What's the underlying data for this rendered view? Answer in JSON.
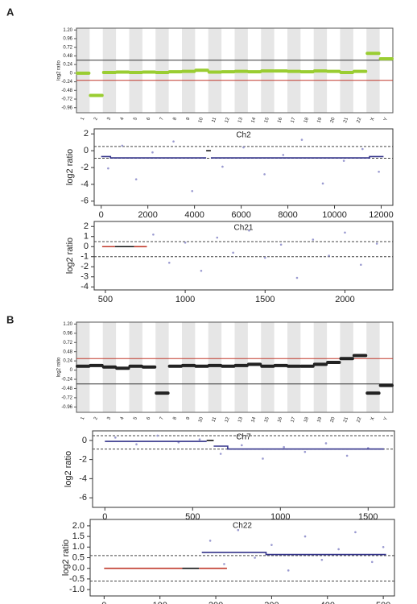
{
  "panel_labels": [
    "A",
    "B"
  ],
  "chart_data": [
    {
      "type": "line",
      "ylabel": "log2 ratio",
      "categories": [
        "1",
        "2",
        "3",
        "4",
        "5",
        "6",
        "7",
        "8",
        "9",
        "10",
        "11",
        "12",
        "13",
        "14",
        "15",
        "16",
        "17",
        "18",
        "19",
        "20",
        "21",
        "22",
        "X",
        "Y"
      ],
      "values": [
        0.0,
        -0.62,
        0.02,
        0.03,
        0.02,
        0.03,
        0.02,
        0.04,
        0.05,
        0.08,
        0.03,
        0.04,
        0.05,
        0.04,
        0.06,
        0.06,
        0.05,
        0.04,
        0.06,
        0.05,
        0.02,
        0.05,
        0.55,
        0.4
      ],
      "color": "#9acd32",
      "ylim": [
        -1.1,
        1.25
      ],
      "yticks": [
        {
          "value": 1.2,
          "label": "1.20"
        },
        0.96,
        0.72,
        0.48,
        0.24,
        0,
        -0.24,
        -0.48,
        -0.72,
        -0.96
      ],
      "reference_lines": [
        0.36,
        -0.2
      ],
      "reference_colors": [
        "#333333",
        "#c0392b"
      ]
    },
    {
      "type": "line",
      "title": "Ch2",
      "ylabel": "log2 ratio",
      "xlim": [
        -300,
        12500
      ],
      "xticks": [
        0,
        2000,
        4000,
        6000,
        8000,
        10000,
        12000
      ],
      "ylim": [
        -6.5,
        2.6
      ],
      "yticks": [
        -6,
        -4,
        -2,
        0,
        2
      ],
      "reference_lines": [
        0.5,
        -0.9
      ],
      "series": [
        {
          "color": "#33338a",
          "x": [
            0,
            400,
            400,
            4500
          ],
          "values": [
            -0.7,
            -0.7,
            -0.85,
            -0.85
          ]
        },
        {
          "color": "#111111",
          "x": [
            4500,
            4700
          ],
          "values": [
            0,
            0
          ]
        },
        {
          "color": "#33338a",
          "x": [
            4700,
            11500,
            11500,
            12100
          ],
          "values": [
            -0.85,
            -0.85,
            -0.7,
            -0.7
          ]
        }
      ],
      "points": {
        "color": "#9a9ad0",
        "x": [
          300,
          900,
          1500,
          2200,
          3100,
          3900,
          5200,
          6100,
          7000,
          7800,
          8600,
          9500,
          10400,
          11200,
          11900
        ],
        "values": [
          -2.1,
          0.6,
          -3.4,
          -0.2,
          1.1,
          -4.8,
          -1.9,
          0.4,
          -2.8,
          -0.5,
          1.3,
          -3.9,
          -1.2,
          0.2,
          -2.5
        ]
      }
    },
    {
      "type": "line",
      "title": "Ch21",
      "ylabel": "log2 ratio",
      "xlim": [
        430,
        2300
      ],
      "xticks": [
        500,
        1000,
        1500,
        2000
      ],
      "ylim": [
        -4.3,
        2.5
      ],
      "yticks": [
        -4,
        -3,
        -2,
        -1,
        0,
        1,
        2
      ],
      "reference_lines": [
        0.5,
        -1
      ],
      "series": [
        {
          "color": "#c0392b",
          "x": [
            480,
            560
          ],
          "values": [
            0,
            0
          ]
        },
        {
          "color": "#111111",
          "x": [
            560,
            680
          ],
          "values": [
            0,
            0
          ]
        },
        {
          "color": "#c0392b",
          "x": [
            680,
            760
          ],
          "values": [
            0,
            0
          ]
        }
      ],
      "points": {
        "color": "#9a9ad0",
        "x": [
          800,
          900,
          1000,
          1100,
          1200,
          1300,
          1400,
          1500,
          1600,
          1700,
          1800,
          1900,
          2000,
          2100,
          2200
        ],
        "values": [
          1.2,
          -1.6,
          0.4,
          -2.4,
          0.9,
          -0.6,
          1.6,
          -1.1,
          0.2,
          -3.1,
          0.7,
          -0.9,
          1.4,
          -1.8,
          0.3
        ]
      }
    },
    {
      "type": "line",
      "ylabel": "log2 ratio",
      "categories": [
        "1",
        "2",
        "3",
        "4",
        "5",
        "6",
        "7",
        "8",
        "9",
        "10",
        "11",
        "12",
        "13",
        "14",
        "15",
        "16",
        "17",
        "18",
        "19",
        "20",
        "21",
        "22",
        "X",
        "Y"
      ],
      "values": [
        0.1,
        0.12,
        0.08,
        0.05,
        0.1,
        0.08,
        -0.6,
        0.1,
        0.12,
        0.1,
        0.12,
        0.1,
        0.12,
        0.15,
        0.1,
        0.12,
        0.1,
        0.1,
        0.15,
        0.2,
        0.3,
        0.38,
        -0.6,
        -0.4
      ],
      "color": "#222222",
      "ylim": [
        -1.1,
        1.25
      ],
      "yticks": [
        {
          "value": 1.2,
          "label": "1.20"
        },
        0.96,
        0.72,
        0.48,
        0.24,
        0,
        -0.24,
        -0.48,
        -0.72,
        -0.96
      ],
      "reference_lines": [
        0.3,
        -0.36
      ],
      "reference_colors": [
        "#c0392b",
        "#333333"
      ]
    },
    {
      "type": "line",
      "title": "Ch7",
      "ylabel": "log2 ratio",
      "xlim": [
        -70,
        1650
      ],
      "xticks": [
        0,
        500,
        1000,
        1500
      ],
      "ylim": [
        -7,
        1
      ],
      "yticks": [
        -6,
        -4,
        -2,
        0
      ],
      "reference_lines": [
        0.5,
        -0.9
      ],
      "series": [
        {
          "color": "#33338a",
          "x": [
            0,
            580
          ],
          "values": [
            -0.1,
            -0.1
          ]
        },
        {
          "color": "#111111",
          "x": [
            580,
            620
          ],
          "values": [
            0,
            0
          ]
        },
        {
          "color": "#33338a",
          "x": [
            620,
            700,
            700,
            1590
          ],
          "values": [
            -0.6,
            -0.6,
            -0.9,
            -0.9
          ]
        }
      ],
      "points": {
        "color": "#9a9ad0",
        "x": [
          60,
          180,
          300,
          420,
          540,
          660,
          780,
          900,
          1020,
          1140,
          1260,
          1380,
          1500
        ],
        "values": [
          0.3,
          -0.4,
          0.5,
          -0.2,
          0.1,
          -1.4,
          -0.5,
          -1.9,
          -0.7,
          -1.2,
          -0.3,
          -1.6,
          -0.8
        ]
      }
    },
    {
      "type": "line",
      "title": "Ch22",
      "ylabel": "log2 ratio",
      "xlim": [
        -25,
        520
      ],
      "xticks": [
        0,
        100,
        200,
        300,
        400,
        500
      ],
      "ylim": [
        -1.3,
        2.3
      ],
      "yticks": [
        {
          "value": -1,
          "label": "-1.0"
        },
        -0.5,
        {
          "value": 0,
          "label": "0.0"
        },
        0.5,
        {
          "value": 1,
          "label": "1.0"
        },
        1.5,
        {
          "value": 2,
          "label": "2.0"
        }
      ],
      "reference_lines": [
        0.6,
        -0.6
      ],
      "series": [
        {
          "color": "#c0392b",
          "x": [
            0,
            140
          ],
          "values": [
            0,
            0
          ]
        },
        {
          "color": "#111111",
          "x": [
            140,
            170
          ],
          "values": [
            0,
            0
          ]
        },
        {
          "color": "#c0392b",
          "x": [
            170,
            220
          ],
          "values": [
            0,
            0
          ]
        },
        {
          "color": "#33338a",
          "x": [
            175,
            290,
            290,
            505
          ],
          "values": [
            0.75,
            0.75,
            0.65,
            0.65
          ]
        }
      ],
      "points": {
        "color": "#9a9ad0",
        "x": [
          190,
          215,
          240,
          270,
          300,
          330,
          360,
          390,
          420,
          450,
          480,
          500
        ],
        "values": [
          1.3,
          0.2,
          1.8,
          0.5,
          1.1,
          -0.1,
          1.5,
          0.4,
          0.9,
          1.7,
          0.3,
          1.0
        ]
      }
    }
  ]
}
